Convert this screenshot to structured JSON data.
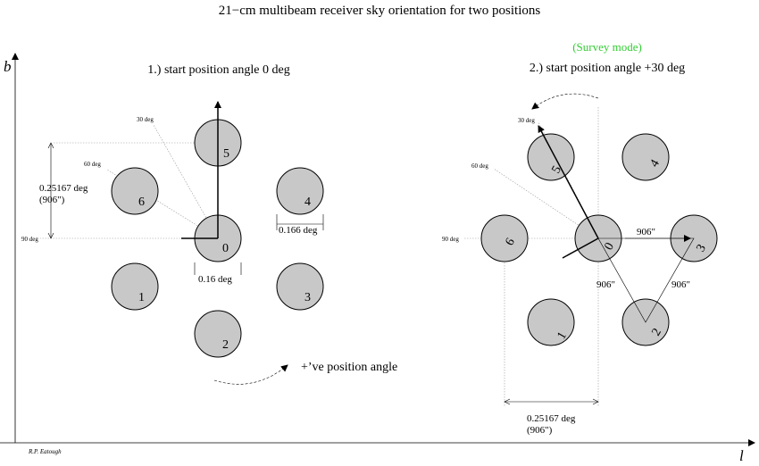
{
  "title": "21−cm multibeam receiver sky orientation for two positions",
  "axes": {
    "b_label": "b",
    "l_label": "l"
  },
  "author": "R.P. Eatough",
  "panel1": {
    "heading": "1.) start position angle 0 deg",
    "angle_labels": [
      "30 deg",
      "60 deg",
      "90 deg"
    ],
    "spacing_label": "0.25167 deg",
    "spacing_arcsec": "(906\")",
    "beam_width_label": "0.166 deg",
    "center_offset_label": "0.16 deg",
    "rotation_label": "+’ve position angle",
    "beams": [
      "0",
      "1",
      "2",
      "3",
      "4",
      "5",
      "6"
    ]
  },
  "panel2": {
    "mode": "(Survey mode)",
    "heading": "2.) start position angle +30 deg",
    "angle_labels": [
      "30 deg",
      "60 deg",
      "90 deg"
    ],
    "separations": [
      "906\"",
      "906\"",
      "906\""
    ],
    "spacing_label": "0.25167 deg",
    "spacing_arcsec": "(906\")",
    "beams": [
      "0",
      "1",
      "2",
      "3",
      "4",
      "5",
      "6"
    ]
  },
  "colors": {
    "beam_fill": "#c8c8c8",
    "survey_mode": "#33cc33"
  }
}
